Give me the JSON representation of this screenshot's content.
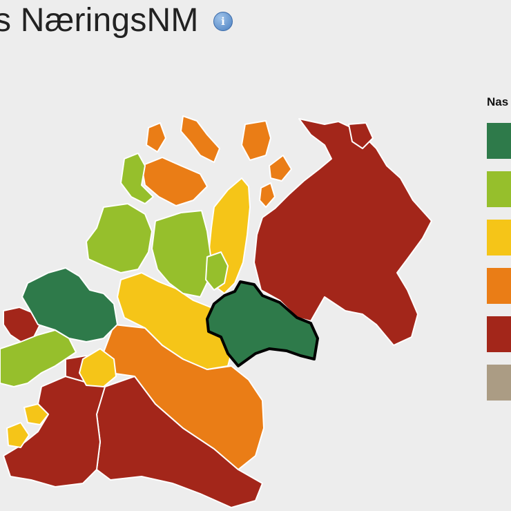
{
  "title": "s NæringsNM",
  "info_icon": {
    "name": "info-icon",
    "glyph": "i"
  },
  "legend": {
    "title": "Nas",
    "items": [
      {
        "color": "#2e7a4a"
      },
      {
        "color": "#96bf2c"
      },
      {
        "color": "#f5c518"
      },
      {
        "color": "#ea7d16"
      },
      {
        "color": "#a3261a"
      },
      {
        "color": "#ab9c84"
      }
    ]
  },
  "map": {
    "highlight_stroke": "#000000",
    "border_color": "#ffffff",
    "region_colors": {
      "dark_green": "#2e7a4a",
      "light_green": "#96bf2c",
      "yellow": "#f5c518",
      "orange": "#ea7d16",
      "red": "#a3261a"
    }
  }
}
